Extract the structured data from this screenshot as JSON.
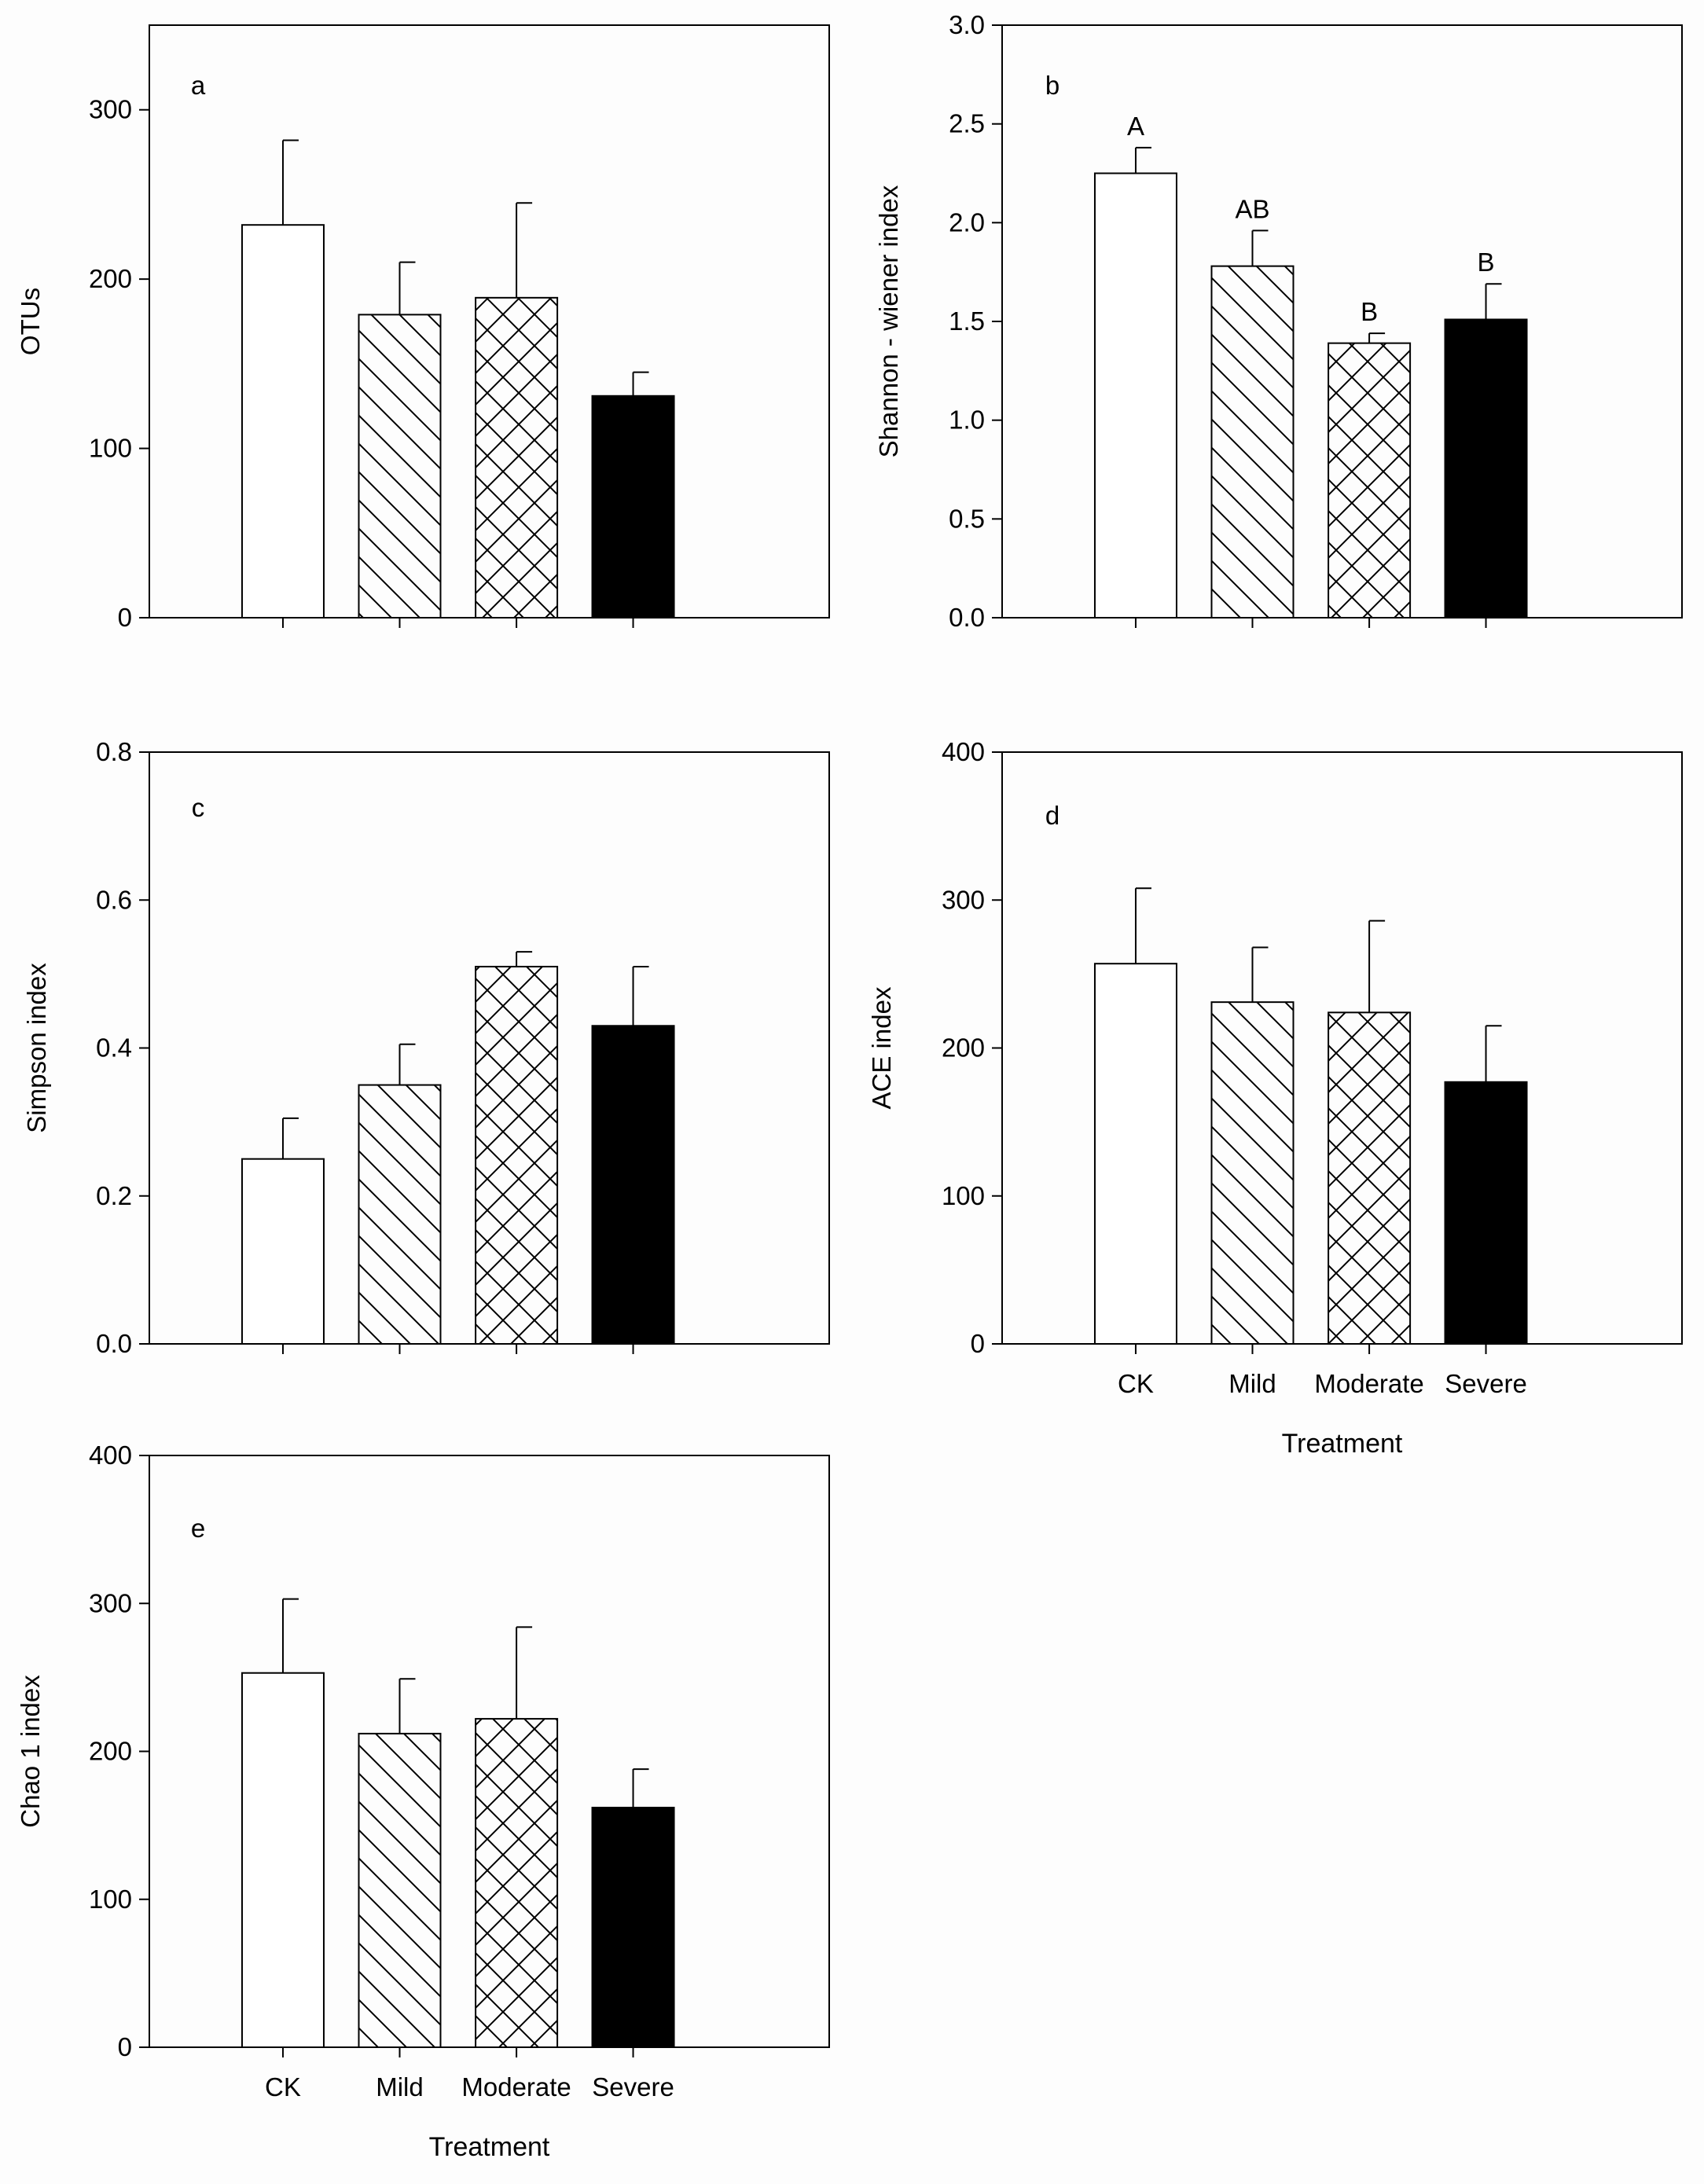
{
  "figure": {
    "shared_categories": [
      "CK",
      "Mild",
      "Moderate",
      "Severe"
    ],
    "patterns": [
      "none",
      "diagonal",
      "crosshatch",
      "solid"
    ],
    "colors": {
      "line": "#000000",
      "background": "#fdfdfd",
      "bar_fill": "#ffffff",
      "solid_fill": "#000000"
    }
  },
  "chart_data": [
    {
      "type": "bar",
      "panel_label": "a",
      "title": "",
      "xlabel": "",
      "ylabel": "OTUs",
      "categories": [
        "CK",
        "Mild",
        "Moderate",
        "Severe"
      ],
      "values": [
        232,
        179,
        189,
        131
      ],
      "errors": [
        50,
        31,
        56,
        14
      ],
      "significance": [],
      "ylim": [
        0,
        350
      ],
      "yticks": [
        0,
        100,
        200,
        300
      ],
      "ytick_labels": [
        "0",
        "100",
        "200",
        "300"
      ],
      "show_xtick_labels": false,
      "grid": false
    },
    {
      "type": "bar",
      "panel_label": "b",
      "title": "",
      "xlabel": "",
      "ylabel": "Shannon - wiener index",
      "categories": [
        "CK",
        "Mild",
        "Moderate",
        "Severe"
      ],
      "values": [
        2.25,
        1.78,
        1.39,
        1.51
      ],
      "errors": [
        0.13,
        0.18,
        0.05,
        0.18
      ],
      "significance": [
        "A",
        "AB",
        "B",
        "B"
      ],
      "ylim": [
        0,
        3.0
      ],
      "yticks": [
        0,
        0.5,
        1.0,
        1.5,
        2.0,
        2.5,
        3.0
      ],
      "ytick_labels": [
        "0.0",
        "0.5",
        "1.0",
        "1.5",
        "2.0",
        "2.5",
        "3.0"
      ],
      "show_xtick_labels": false,
      "grid": false
    },
    {
      "type": "bar",
      "panel_label": "c",
      "title": "",
      "xlabel": "",
      "ylabel": "Simpson index",
      "categories": [
        "CK",
        "Mild",
        "Moderate",
        "Severe"
      ],
      "values": [
        0.25,
        0.35,
        0.51,
        0.43
      ],
      "errors": [
        0.055,
        0.055,
        0.02,
        0.08
      ],
      "significance": [],
      "ylim": [
        0,
        0.8
      ],
      "yticks": [
        0,
        0.2,
        0.4,
        0.6,
        0.8
      ],
      "ytick_labels": [
        "0.0",
        "0.2",
        "0.4",
        "0.6",
        "0.8"
      ],
      "show_xtick_labels": false,
      "grid": false
    },
    {
      "type": "bar",
      "panel_label": "d",
      "title": "",
      "xlabel": "Treatment",
      "ylabel": "ACE index",
      "categories": [
        "CK",
        "Mild",
        "Moderate",
        "Severe"
      ],
      "values": [
        257,
        231,
        224,
        177
      ],
      "errors": [
        51,
        37,
        62,
        38
      ],
      "significance": [],
      "ylim": [
        0,
        400
      ],
      "yticks": [
        0,
        100,
        200,
        300,
        400
      ],
      "ytick_labels": [
        "0",
        "100",
        "200",
        "300",
        "400"
      ],
      "show_xtick_labels": true,
      "grid": false
    },
    {
      "type": "bar",
      "panel_label": "e",
      "title": "",
      "xlabel": "Treatment",
      "ylabel": "Chao 1 index",
      "categories": [
        "CK",
        "Mild",
        "Moderate",
        "Severe"
      ],
      "values": [
        253,
        212,
        222,
        162
      ],
      "errors": [
        50,
        37,
        62,
        26
      ],
      "significance": [],
      "ylim": [
        0,
        400
      ],
      "yticks": [
        0,
        100,
        200,
        300,
        400
      ],
      "ytick_labels": [
        "0",
        "100",
        "200",
        "300",
        "400"
      ],
      "show_xtick_labels": true,
      "grid": false
    }
  ]
}
